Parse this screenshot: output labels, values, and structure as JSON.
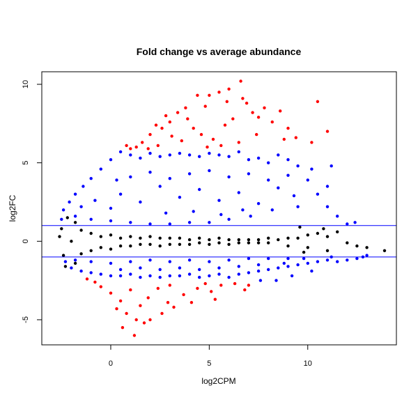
{
  "chart_data": {
    "type": "scatter",
    "title": "Fold change vs average abundance",
    "xlabel": "log2CPM",
    "ylabel": "log2FC",
    "xlim": [
      -3.5,
      14.5
    ],
    "ylim": [
      -6.6,
      10.8
    ],
    "x_ticks": [
      0,
      5,
      10
    ],
    "y_ticks": [
      -5,
      0,
      5,
      10
    ],
    "hlines": [
      1,
      -1
    ],
    "grid": false,
    "legend": "none",
    "colors": {
      "non_significant": "#000000",
      "significant_moderate": "#0000FF",
      "significant_high": "#FF0000",
      "threshold_line": "#0000FF"
    },
    "series": [
      {
        "color_key": "significant_high",
        "points": [
          [
            6.6,
            10.2
          ],
          [
            6.0,
            9.7
          ],
          [
            5.5,
            9.5
          ],
          [
            5.0,
            9.3
          ],
          [
            4.4,
            9.3
          ],
          [
            3.8,
            8.5
          ],
          [
            3.4,
            8.2
          ],
          [
            2.8,
            8.0
          ],
          [
            3.0,
            7.6
          ],
          [
            2.3,
            7.4
          ],
          [
            2.6,
            7.2
          ],
          [
            3.1,
            6.7
          ],
          [
            2.0,
            6.8
          ],
          [
            1.6,
            6.3
          ],
          [
            1.3,
            6.0
          ],
          [
            1.0,
            5.9
          ],
          [
            0.8,
            6.1
          ],
          [
            4.2,
            7.2
          ],
          [
            4.6,
            6.8
          ],
          [
            5.2,
            6.5
          ],
          [
            5.8,
            7.4
          ],
          [
            6.2,
            7.8
          ],
          [
            6.9,
            8.8
          ],
          [
            7.2,
            8.2
          ],
          [
            7.8,
            8.5
          ],
          [
            8.6,
            8.3
          ],
          [
            8.2,
            7.6
          ],
          [
            9.0,
            7.2
          ],
          [
            9.4,
            6.6
          ],
          [
            10.5,
            8.9
          ],
          [
            11.0,
            7.0
          ],
          [
            10.2,
            6.3
          ],
          [
            8.8,
            6.5
          ],
          [
            7.4,
            6.8
          ],
          [
            6.5,
            6.3
          ],
          [
            5.6,
            6.1
          ],
          [
            4.9,
            6.0
          ],
          [
            3.6,
            6.4
          ],
          [
            2.4,
            6.1
          ],
          [
            1.9,
            5.9
          ],
          [
            3.9,
            7.8
          ],
          [
            4.8,
            8.6
          ],
          [
            5.9,
            8.9
          ],
          [
            6.7,
            9.1
          ],
          [
            7.5,
            7.9
          ],
          [
            0.5,
            -3.8
          ],
          [
            0.3,
            -4.3
          ],
          [
            0.8,
            -4.6
          ],
          [
            1.3,
            -5.0
          ],
          [
            1.7,
            -5.2
          ],
          [
            1.2,
            -6.0
          ],
          [
            2.0,
            -5.0
          ],
          [
            2.6,
            -4.6
          ],
          [
            3.2,
            -4.2
          ],
          [
            0.0,
            -3.3
          ],
          [
            -0.5,
            -2.9
          ],
          [
            -0.8,
            -2.6
          ],
          [
            -1.2,
            -2.4
          ],
          [
            1.0,
            -3.1
          ],
          [
            1.9,
            -3.6
          ],
          [
            2.4,
            -3.0
          ],
          [
            3.0,
            -2.8
          ],
          [
            3.7,
            -3.4
          ],
          [
            4.4,
            -3.0
          ],
          [
            5.1,
            -3.2
          ],
          [
            4.8,
            -2.7
          ],
          [
            5.6,
            -2.8
          ],
          [
            6.3,
            -2.7
          ],
          [
            7.0,
            -2.8
          ],
          [
            5.3,
            -3.7
          ],
          [
            4.1,
            -3.9
          ],
          [
            2.9,
            -3.9
          ],
          [
            0.6,
            -5.5
          ],
          [
            1.5,
            -4.1
          ],
          [
            6.8,
            -3.1
          ]
        ]
      },
      {
        "color_key": "significant_moderate",
        "note_region": "upper blue cloud",
        "points": [
          [
            0.5,
            5.7
          ],
          [
            0.0,
            5.2
          ],
          [
            -0.5,
            4.6
          ],
          [
            -1.0,
            4.0
          ],
          [
            -1.4,
            3.5
          ],
          [
            -1.8,
            3.0
          ],
          [
            -2.1,
            2.5
          ],
          [
            -2.4,
            2.0
          ],
          [
            1.0,
            5.5
          ],
          [
            1.5,
            5.3
          ],
          [
            2.0,
            5.6
          ],
          [
            2.5,
            5.4
          ],
          [
            3.0,
            5.5
          ],
          [
            3.5,
            5.6
          ],
          [
            4.0,
            5.5
          ],
          [
            4.5,
            5.4
          ],
          [
            5.0,
            5.6
          ],
          [
            5.5,
            5.5
          ],
          [
            6.0,
            5.4
          ],
          [
            6.5,
            5.7
          ],
          [
            7.0,
            5.2
          ],
          [
            7.5,
            5.3
          ],
          [
            8.0,
            5.0
          ],
          [
            8.5,
            5.5
          ],
          [
            9.0,
            5.2
          ],
          [
            9.5,
            4.8
          ],
          [
            10.2,
            4.6
          ],
          [
            11.2,
            4.8
          ],
          [
            10.0,
            3.9
          ],
          [
            10.5,
            3.0
          ],
          [
            11.0,
            2.2
          ],
          [
            11.0,
            3.5
          ],
          [
            9.3,
            2.9
          ],
          [
            8.2,
            2.0
          ],
          [
            7.1,
            1.6
          ],
          [
            6.0,
            1.4
          ],
          [
            5.0,
            1.2
          ],
          [
            4.0,
            1.2
          ],
          [
            3.0,
            1.1
          ],
          [
            2.0,
            1.1
          ],
          [
            1.0,
            1.2
          ],
          [
            0.0,
            1.3
          ],
          [
            -1.0,
            1.4
          ],
          [
            -1.8,
            1.6
          ],
          [
            -2.5,
            1.4
          ],
          [
            0.5,
            3.0
          ],
          [
            1.5,
            2.5
          ],
          [
            2.5,
            3.5
          ],
          [
            3.5,
            2.8
          ],
          [
            4.5,
            3.3
          ],
          [
            5.5,
            2.6
          ],
          [
            6.5,
            3.1
          ],
          [
            7.5,
            2.4
          ],
          [
            8.5,
            3.4
          ],
          [
            9.5,
            2.2
          ],
          [
            0.0,
            2.1
          ],
          [
            1.0,
            4.1
          ],
          [
            2.0,
            4.4
          ],
          [
            3.0,
            4.0
          ],
          [
            4.0,
            4.3
          ],
          [
            5.0,
            4.5
          ],
          [
            6.0,
            4.1
          ],
          [
            7.0,
            4.3
          ],
          [
            8.0,
            3.9
          ],
          [
            9.0,
            4.2
          ],
          [
            -0.8,
            2.6
          ],
          [
            -1.5,
            2.2
          ],
          [
            0.3,
            3.9
          ],
          [
            12.0,
            1.1
          ],
          [
            11.5,
            1.6
          ],
          [
            12.4,
            1.2
          ],
          [
            2.8,
            1.8
          ],
          [
            4.2,
            1.9
          ],
          [
            5.6,
            1.7
          ],
          [
            6.7,
            2.0
          ]
        ]
      },
      {
        "color_key": "significant_moderate",
        "note_region": "lower blue cloud",
        "points": [
          [
            -2.0,
            -1.7
          ],
          [
            -1.5,
            -1.9
          ],
          [
            -1.0,
            -2.0
          ],
          [
            -0.5,
            -2.1
          ],
          [
            0.0,
            -2.2
          ],
          [
            0.5,
            -2.2
          ],
          [
            1.0,
            -2.1
          ],
          [
            1.5,
            -2.3
          ],
          [
            2.0,
            -2.2
          ],
          [
            2.5,
            -2.3
          ],
          [
            3.0,
            -2.2
          ],
          [
            3.5,
            -2.2
          ],
          [
            4.0,
            -2.1
          ],
          [
            4.5,
            -2.3
          ],
          [
            5.0,
            -2.2
          ],
          [
            5.5,
            -2.1
          ],
          [
            6.0,
            -2.3
          ],
          [
            6.5,
            -2.1
          ],
          [
            7.0,
            -2.0
          ],
          [
            7.5,
            -1.9
          ],
          [
            8.0,
            -1.8
          ],
          [
            8.5,
            -1.7
          ],
          [
            9.0,
            -1.6
          ],
          [
            9.5,
            -1.5
          ],
          [
            10.0,
            -1.4
          ],
          [
            10.5,
            -1.3
          ],
          [
            11.0,
            -1.2
          ],
          [
            11.5,
            -1.3
          ],
          [
            12.0,
            -1.2
          ],
          [
            12.5,
            -1.1
          ],
          [
            -2.3,
            -1.3
          ],
          [
            -1.8,
            -1.2
          ],
          [
            -1.0,
            -1.3
          ],
          [
            0.0,
            -1.4
          ],
          [
            1.0,
            -1.3
          ],
          [
            2.0,
            -1.2
          ],
          [
            3.0,
            -1.3
          ],
          [
            4.0,
            -1.2
          ],
          [
            5.0,
            -1.3
          ],
          [
            6.0,
            -1.2
          ],
          [
            7.0,
            -1.1
          ],
          [
            8.0,
            -1.1
          ],
          [
            9.0,
            -1.1
          ],
          [
            9.8,
            -1.1
          ],
          [
            11.2,
            -1.0
          ],
          [
            0.5,
            -1.8
          ],
          [
            1.5,
            -1.7
          ],
          [
            2.5,
            -1.8
          ],
          [
            3.5,
            -1.7
          ],
          [
            4.5,
            -1.8
          ],
          [
            5.5,
            -1.7
          ],
          [
            6.5,
            -1.6
          ],
          [
            7.5,
            -1.5
          ],
          [
            8.8,
            -1.4
          ],
          [
            10.2,
            -1.9
          ],
          [
            9.2,
            -2.2
          ],
          [
            8.4,
            -2.5
          ],
          [
            7.6,
            -2.5
          ],
          [
            12.8,
            -1.0
          ],
          [
            13.0,
            -0.9
          ]
        ]
      },
      {
        "color_key": "non_significant",
        "note_region": "central black band",
        "points": [
          [
            -2.5,
            0.8
          ],
          [
            -2.4,
            -0.9
          ],
          [
            -2.2,
            1.5
          ],
          [
            -2.3,
            -1.6
          ],
          [
            -2.0,
            0.0
          ],
          [
            -1.5,
            0.7
          ],
          [
            -1.5,
            -0.8
          ],
          [
            -1.0,
            0.5
          ],
          [
            -1.0,
            -0.6
          ],
          [
            -0.5,
            0.3
          ],
          [
            -0.5,
            -0.4
          ],
          [
            0.0,
            0.4
          ],
          [
            0.0,
            -0.5
          ],
          [
            0.5,
            0.2
          ],
          [
            0.5,
            -0.3
          ],
          [
            1.0,
            0.3
          ],
          [
            1.0,
            -0.3
          ],
          [
            1.5,
            0.2
          ],
          [
            1.5,
            -0.2
          ],
          [
            2.0,
            0.3
          ],
          [
            2.0,
            -0.2
          ],
          [
            2.5,
            0.2
          ],
          [
            2.5,
            -0.3
          ],
          [
            3.0,
            0.2
          ],
          [
            3.0,
            -0.2
          ],
          [
            3.5,
            0.2
          ],
          [
            3.5,
            -0.2
          ],
          [
            4.0,
            0.1
          ],
          [
            4.0,
            -0.2
          ],
          [
            4.5,
            0.2
          ],
          [
            4.5,
            -0.1
          ],
          [
            5.0,
            0.1
          ],
          [
            5.0,
            -0.2
          ],
          [
            5.5,
            0.2
          ],
          [
            5.5,
            -0.1
          ],
          [
            6.0,
            0.1
          ],
          [
            6.0,
            -0.2
          ],
          [
            6.5,
            0.1
          ],
          [
            6.5,
            -0.1
          ],
          [
            7.0,
            0.1
          ],
          [
            7.0,
            -0.1
          ],
          [
            7.5,
            0.1
          ],
          [
            7.5,
            -0.1
          ],
          [
            8.0,
            0.2
          ],
          [
            8.0,
            -0.1
          ],
          [
            8.5,
            0.1
          ],
          [
            9.0,
            0.2
          ],
          [
            9.0,
            -0.3
          ],
          [
            9.5,
            0.2
          ],
          [
            10.0,
            0.4
          ],
          [
            10.0,
            -0.4
          ],
          [
            10.5,
            0.5
          ],
          [
            11.0,
            0.3
          ],
          [
            11.0,
            -0.6
          ],
          [
            12.0,
            -0.1
          ],
          [
            12.5,
            -0.3
          ],
          [
            13.0,
            -0.4
          ],
          [
            13.9,
            -0.6
          ],
          [
            11.5,
            0.6
          ],
          [
            -2.6,
            0.3
          ],
          [
            -1.8,
            1.2
          ],
          [
            -1.8,
            -1.4
          ],
          [
            9.6,
            0.9
          ],
          [
            10.8,
            0.8
          ],
          [
            9.8,
            -0.7
          ]
        ]
      }
    ]
  }
}
